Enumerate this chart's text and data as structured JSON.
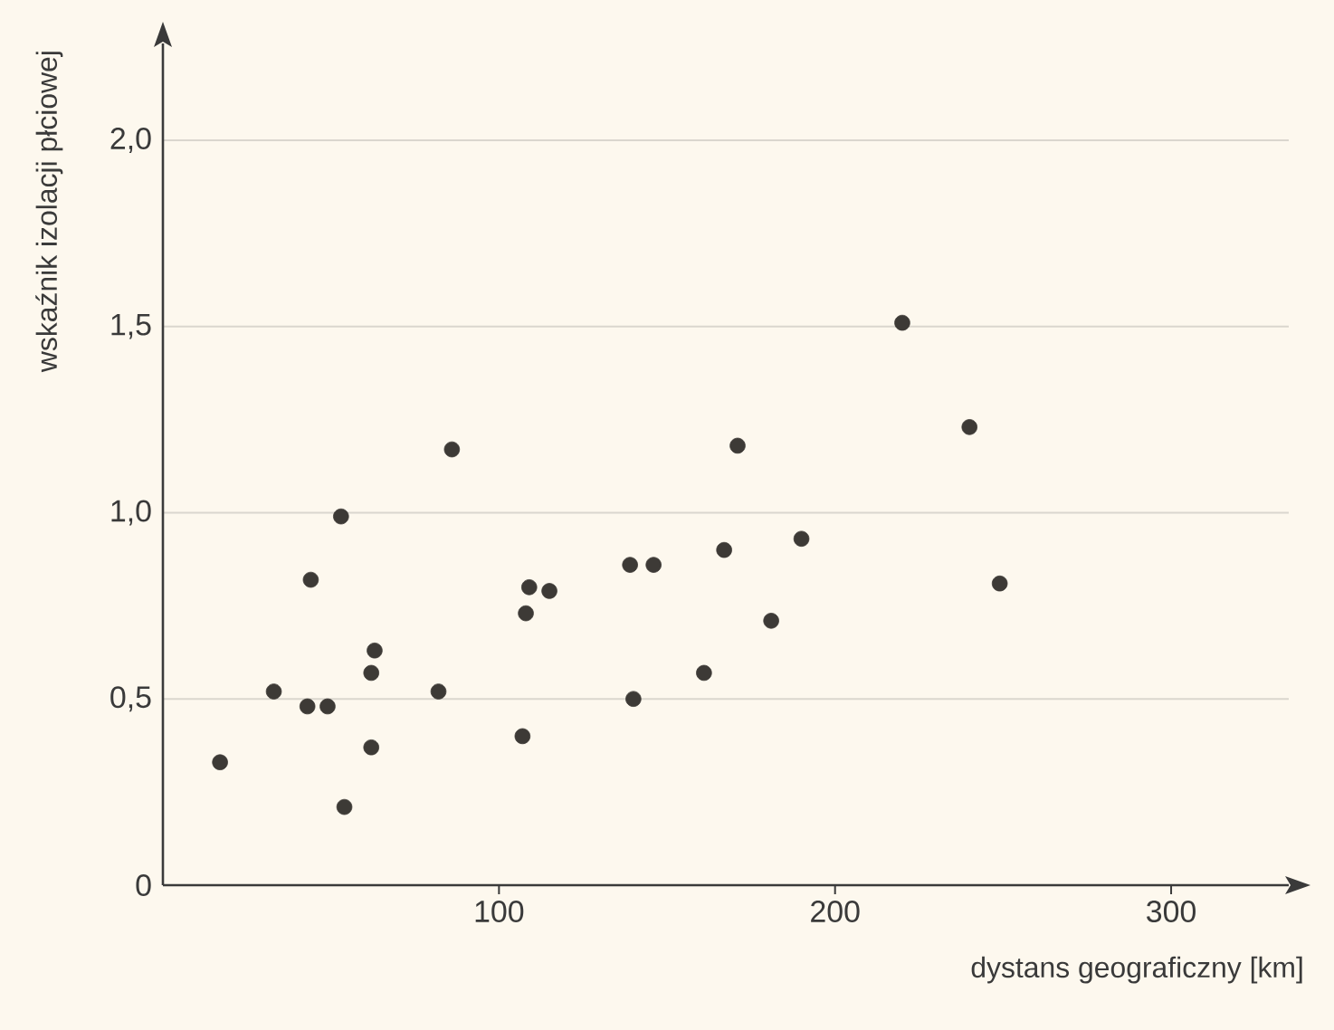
{
  "chart_data": {
    "type": "scatter",
    "xlabel": "dystans geograficzny [km]",
    "ylabel": "wskaźnik izolacji płciowej",
    "xlim": [
      0,
      335
    ],
    "ylim": [
      0,
      2.26
    ],
    "xticks": [
      100,
      200,
      300
    ],
    "yticks": [
      0,
      {
        "value": 0.5,
        "label": "0,5"
      },
      {
        "value": 1.0,
        "label": "1,0"
      },
      {
        "value": 1.5,
        "label": "1,5"
      },
      {
        "value": 2.0,
        "label": "2,0"
      }
    ],
    "grid": "y",
    "marker": "circle",
    "series": [
      {
        "color": "#3d3a36",
        "x": [
          17,
          33,
          43,
          49,
          44,
          53,
          54,
          62,
          62,
          63,
          82,
          86,
          107,
          108,
          109,
          115,
          139,
          146,
          140,
          161,
          167,
          171,
          181,
          190,
          220,
          240,
          249
        ],
        "values": [
          0.33,
          0.52,
          0.48,
          0.48,
          0.82,
          0.99,
          0.21,
          0.37,
          0.57,
          0.63,
          0.52,
          1.17,
          0.4,
          0.73,
          0.8,
          0.79,
          0.86,
          0.86,
          0.5,
          0.57,
          0.9,
          1.18,
          0.71,
          0.93,
          1.51,
          1.23,
          0.81
        ]
      }
    ]
  }
}
